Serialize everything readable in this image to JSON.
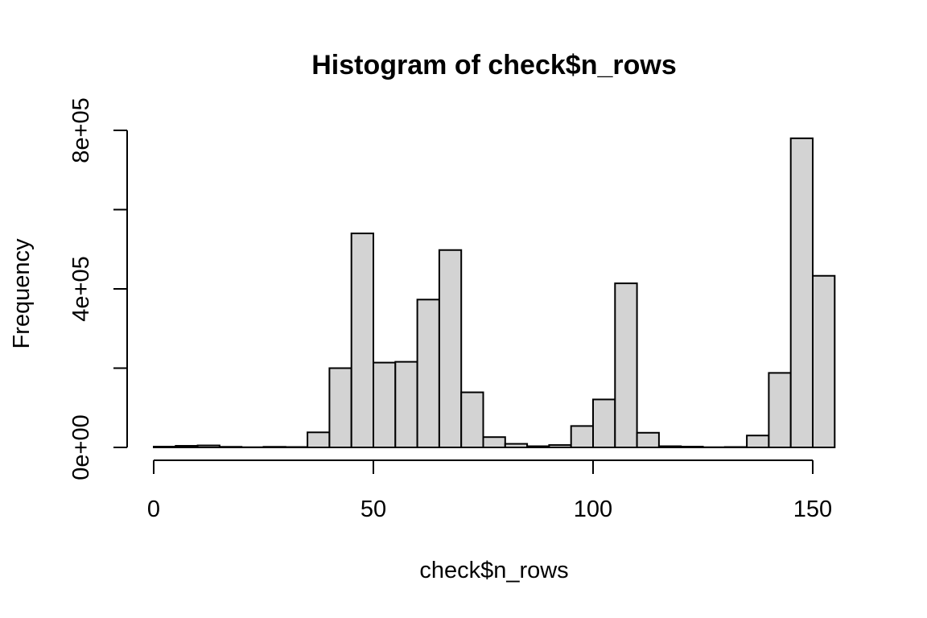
{
  "chart_data": {
    "type": "bar",
    "title": "Histogram of check$n_rows",
    "xlabel": "check$n_rows",
    "ylabel": "Frequency",
    "bar_color": "#d3d3d3",
    "border_color": "#000000",
    "bin_edges": [
      0,
      5,
      10,
      15,
      20,
      25,
      30,
      35,
      40,
      45,
      50,
      55,
      60,
      65,
      70,
      75,
      80,
      85,
      90,
      95,
      100,
      105,
      110,
      115,
      120,
      125,
      130,
      135,
      140,
      145,
      150,
      155
    ],
    "values": [
      2000,
      4000,
      5000,
      1500,
      500,
      1500,
      1000,
      38000,
      200000,
      540000,
      214000,
      216000,
      373000,
      498000,
      139000,
      26000,
      9000,
      3000,
      6000,
      54000,
      121000,
      414000,
      37000,
      3000,
      2000,
      500,
      1000,
      30000,
      188000,
      780000,
      433000
    ],
    "xlim": [
      0,
      155
    ],
    "ylim": [
      0,
      800000
    ],
    "x_ticks": [
      0,
      50,
      100,
      150
    ],
    "x_tick_labels": [
      "0",
      "50",
      "100",
      "150"
    ],
    "y_ticks": [
      0,
      200000,
      400000,
      600000,
      800000
    ],
    "y_tick_labels": [
      "0e+00",
      "",
      "4e+05",
      "",
      "8e+05"
    ],
    "grid": false,
    "legend": "none"
  }
}
